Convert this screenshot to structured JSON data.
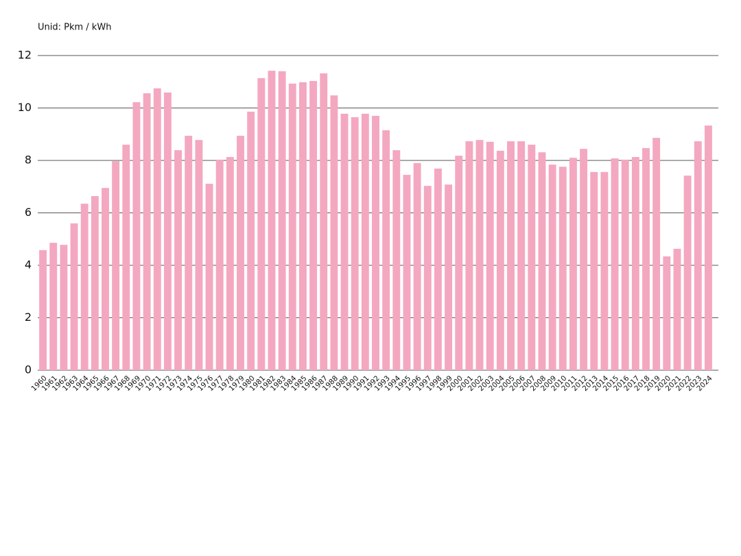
{
  "chart_data": {
    "type": "bar",
    "unit_label": "Unid: Pkm / kWh",
    "categories": [
      "1960",
      "1961",
      "1962",
      "1963",
      "1964",
      "1965",
      "1966",
      "1967",
      "1968",
      "1969",
      "1970",
      "1971",
      "1972",
      "1973",
      "1974",
      "1975",
      "1976",
      "1977",
      "1978",
      "1979",
      "1980",
      "1981",
      "1982",
      "1983",
      "1984",
      "1985",
      "1986",
      "1987",
      "1988",
      "1989",
      "1990",
      "1991",
      "1992",
      "1993",
      "1994",
      "1995",
      "1996",
      "1997",
      "1998",
      "1999",
      "2000",
      "2001",
      "2002",
      "2003",
      "2004",
      "2005",
      "2006",
      "2007",
      "2008",
      "2009",
      "2010",
      "2011",
      "2012",
      "2013",
      "2014",
      "2015",
      "2016",
      "2017",
      "2018",
      "2019",
      "2020",
      "2021",
      "2022",
      "2023",
      "2024"
    ],
    "values": [
      4.58,
      4.86,
      4.78,
      5.6,
      6.35,
      6.64,
      6.95,
      7.97,
      8.6,
      10.22,
      10.56,
      10.75,
      10.59,
      8.39,
      8.94,
      8.78,
      7.11,
      8.03,
      8.13,
      8.94,
      9.86,
      11.14,
      11.42,
      11.4,
      10.93,
      10.98,
      11.03,
      11.32,
      10.48,
      9.78,
      9.65,
      9.78,
      9.7,
      9.15,
      8.39,
      7.45,
      7.9,
      7.03,
      7.69,
      7.08,
      8.18,
      8.73,
      8.78,
      8.71,
      8.37,
      8.73,
      8.73,
      8.6,
      8.31,
      7.84,
      7.76,
      8.1,
      8.44,
      7.56,
      7.56,
      8.08,
      8.03,
      8.13,
      8.47,
      8.86,
      4.34,
      4.63,
      7.42,
      8.73,
      9.33
    ],
    "color": "#f4a8c0",
    "ylim": [
      0,
      12
    ],
    "yticks": [
      0,
      2,
      4,
      6,
      8,
      10,
      12
    ],
    "grid": true
  }
}
